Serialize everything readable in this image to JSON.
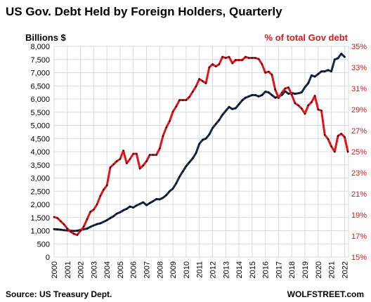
{
  "chart_data": {
    "type": "line",
    "title": "US Gov. Debt Held by Foreign Holders,  Quarterly",
    "y_left": {
      "label": "Billions  $",
      "range": [
        0,
        8000
      ],
      "ticks": [
        "0",
        "500",
        "1,000",
        "1,500",
        "2,000",
        "2,500",
        "3,000",
        "3,500",
        "4,000",
        "4,500",
        "5,000",
        "5,500",
        "6,000",
        "6,500",
        "7,000",
        "7,500",
        "8,000"
      ],
      "tick_values": [
        0,
        500,
        1000,
        1500,
        2000,
        2500,
        3000,
        3500,
        4000,
        4500,
        5000,
        5500,
        6000,
        6500,
        7000,
        7500,
        8000
      ]
    },
    "y_right": {
      "label": "% of total Gov debt",
      "range": [
        15,
        35
      ],
      "ticks": [
        "15%",
        "17%",
        "19%",
        "21%",
        "23%",
        "25%",
        "27%",
        "29%",
        "31%",
        "33%",
        "35%"
      ],
      "tick_values": [
        15,
        17,
        19,
        21,
        23,
        25,
        27,
        29,
        31,
        33,
        35
      ]
    },
    "x_ticks": [
      "2000",
      "2001",
      "2002",
      "2003",
      "2004",
      "2005",
      "2006",
      "2007",
      "2008",
      "2009",
      "2010",
      "2011",
      "2012",
      "2013",
      "2014",
      "2015",
      "2016",
      "2017",
      "2018",
      "2019",
      "2020",
      "2021",
      "2022"
    ],
    "x_range": [
      2000,
      2022.3
    ],
    "grid": true,
    "series": [
      {
        "axis": "left",
        "color": "#1a2a44",
        "points": [
          [
            2000.0,
            1060
          ],
          [
            2000.25,
            1050
          ],
          [
            2000.5,
            1040
          ],
          [
            2000.75,
            1020
          ],
          [
            2001.0,
            1010
          ],
          [
            2001.25,
            1000
          ],
          [
            2001.5,
            990
          ],
          [
            2001.75,
            1000
          ],
          [
            2002.0,
            1030
          ],
          [
            2002.25,
            1060
          ],
          [
            2002.5,
            1080
          ],
          [
            2002.75,
            1150
          ],
          [
            2003.0,
            1200
          ],
          [
            2003.25,
            1250
          ],
          [
            2003.5,
            1280
          ],
          [
            2003.75,
            1340
          ],
          [
            2004.0,
            1400
          ],
          [
            2004.25,
            1480
          ],
          [
            2004.5,
            1550
          ],
          [
            2004.75,
            1650
          ],
          [
            2005.0,
            1700
          ],
          [
            2005.25,
            1780
          ],
          [
            2005.5,
            1830
          ],
          [
            2005.75,
            1920
          ],
          [
            2006.0,
            1880
          ],
          [
            2006.25,
            1960
          ],
          [
            2006.5,
            2020
          ],
          [
            2006.75,
            2080
          ],
          [
            2007.0,
            1970
          ],
          [
            2007.25,
            2050
          ],
          [
            2007.5,
            2120
          ],
          [
            2007.75,
            2200
          ],
          [
            2008.0,
            2190
          ],
          [
            2008.25,
            2250
          ],
          [
            2008.5,
            2350
          ],
          [
            2008.75,
            2500
          ],
          [
            2009.0,
            2600
          ],
          [
            2009.25,
            2800
          ],
          [
            2009.5,
            3050
          ],
          [
            2009.75,
            3250
          ],
          [
            2010.0,
            3450
          ],
          [
            2010.25,
            3600
          ],
          [
            2010.5,
            3750
          ],
          [
            2010.75,
            3950
          ],
          [
            2011.0,
            4300
          ],
          [
            2011.25,
            4450
          ],
          [
            2011.5,
            4500
          ],
          [
            2011.75,
            4650
          ],
          [
            2012.0,
            4900
          ],
          [
            2012.25,
            5050
          ],
          [
            2012.5,
            5200
          ],
          [
            2012.75,
            5400
          ],
          [
            2013.0,
            5550
          ],
          [
            2013.25,
            5700
          ],
          [
            2013.5,
            5620
          ],
          [
            2013.75,
            5650
          ],
          [
            2014.0,
            5800
          ],
          [
            2014.25,
            5950
          ],
          [
            2014.5,
            6050
          ],
          [
            2014.75,
            6100
          ],
          [
            2015.0,
            6150
          ],
          [
            2015.25,
            6150
          ],
          [
            2015.5,
            6100
          ],
          [
            2015.75,
            6150
          ],
          [
            2016.0,
            6280
          ],
          [
            2016.25,
            6250
          ],
          [
            2016.5,
            6150
          ],
          [
            2016.75,
            6050
          ],
          [
            2017.0,
            6100
          ],
          [
            2017.25,
            6150
          ],
          [
            2017.5,
            6300
          ],
          [
            2017.75,
            6200
          ],
          [
            2018.0,
            6230
          ],
          [
            2018.25,
            6200
          ],
          [
            2018.5,
            6220
          ],
          [
            2018.75,
            6250
          ],
          [
            2019.0,
            6450
          ],
          [
            2019.25,
            6600
          ],
          [
            2019.5,
            6900
          ],
          [
            2019.75,
            6850
          ],
          [
            2020.0,
            6950
          ],
          [
            2020.25,
            7050
          ],
          [
            2020.5,
            7050
          ],
          [
            2020.75,
            7100
          ],
          [
            2021.0,
            7050
          ],
          [
            2021.25,
            7500
          ],
          [
            2021.5,
            7550
          ],
          [
            2021.75,
            7720
          ],
          [
            2022.0,
            7600
          ]
        ]
      },
      {
        "axis": "right",
        "color": "#e0141e",
        "points": [
          [
            2000.0,
            18.8
          ],
          [
            2000.25,
            18.7
          ],
          [
            2000.5,
            18.4
          ],
          [
            2000.75,
            18.1
          ],
          [
            2001.0,
            17.7
          ],
          [
            2001.25,
            17.4
          ],
          [
            2001.5,
            17.2
          ],
          [
            2001.75,
            17.1
          ],
          [
            2002.0,
            17.5
          ],
          [
            2002.25,
            17.9
          ],
          [
            2002.5,
            18.6
          ],
          [
            2002.75,
            19.3
          ],
          [
            2003.0,
            19.5
          ],
          [
            2003.25,
            20.0
          ],
          [
            2003.5,
            20.8
          ],
          [
            2003.75,
            21.4
          ],
          [
            2004.0,
            21.8
          ],
          [
            2004.25,
            23.5
          ],
          [
            2004.5,
            23.8
          ],
          [
            2004.75,
            24.1
          ],
          [
            2005.0,
            24.3
          ],
          [
            2005.25,
            25.1
          ],
          [
            2005.5,
            23.9
          ],
          [
            2005.75,
            24.3
          ],
          [
            2006.0,
            24.8
          ],
          [
            2006.25,
            24.8
          ],
          [
            2006.5,
            23.4
          ],
          [
            2006.75,
            23.7
          ],
          [
            2007.0,
            24.1
          ],
          [
            2007.25,
            24.7
          ],
          [
            2007.5,
            24.7
          ],
          [
            2007.75,
            24.7
          ],
          [
            2008.0,
            25.3
          ],
          [
            2008.25,
            26.5
          ],
          [
            2008.5,
            27.3
          ],
          [
            2008.75,
            27.9
          ],
          [
            2009.0,
            28.8
          ],
          [
            2009.25,
            29.3
          ],
          [
            2009.5,
            29.9
          ],
          [
            2009.75,
            29.9
          ],
          [
            2010.0,
            29.9
          ],
          [
            2010.25,
            30.2
          ],
          [
            2010.5,
            30.7
          ],
          [
            2010.75,
            31.2
          ],
          [
            2011.0,
            31.9
          ],
          [
            2011.25,
            31.7
          ],
          [
            2011.5,
            31.5
          ],
          [
            2011.75,
            33.0
          ],
          [
            2012.0,
            33.3
          ],
          [
            2012.25,
            33.1
          ],
          [
            2012.5,
            33.3
          ],
          [
            2012.75,
            34.0
          ],
          [
            2013.0,
            33.9
          ],
          [
            2013.25,
            34.0
          ],
          [
            2013.5,
            33.4
          ],
          [
            2013.75,
            33.7
          ],
          [
            2014.0,
            33.7
          ],
          [
            2014.25,
            33.7
          ],
          [
            2014.5,
            34.0
          ],
          [
            2014.75,
            33.9
          ],
          [
            2015.0,
            33.9
          ],
          [
            2015.25,
            33.9
          ],
          [
            2015.5,
            33.8
          ],
          [
            2015.75,
            33.3
          ],
          [
            2016.0,
            32.5
          ],
          [
            2016.25,
            32.6
          ],
          [
            2016.5,
            32.3
          ],
          [
            2016.75,
            30.9
          ],
          [
            2017.0,
            30.1
          ],
          [
            2017.25,
            30.6
          ],
          [
            2017.5,
            31.0
          ],
          [
            2017.75,
            31.1
          ],
          [
            2018.0,
            30.4
          ],
          [
            2018.25,
            29.6
          ],
          [
            2018.5,
            29.4
          ],
          [
            2018.75,
            29.1
          ],
          [
            2019.0,
            28.6
          ],
          [
            2019.25,
            29.4
          ],
          [
            2019.5,
            29.7
          ],
          [
            2019.75,
            30.3
          ],
          [
            2020.0,
            29.0
          ],
          [
            2020.25,
            28.9
          ],
          [
            2020.5,
            26.6
          ],
          [
            2020.75,
            26.2
          ],
          [
            2021.0,
            25.5
          ],
          [
            2021.25,
            25.0
          ],
          [
            2021.5,
            26.5
          ],
          [
            2021.75,
            26.7
          ],
          [
            2022.0,
            26.4
          ],
          [
            2022.25,
            25.0
          ]
        ]
      }
    ],
    "source": "Source: US Treasury Dept.",
    "brand": "WOLFSTREET.com"
  }
}
